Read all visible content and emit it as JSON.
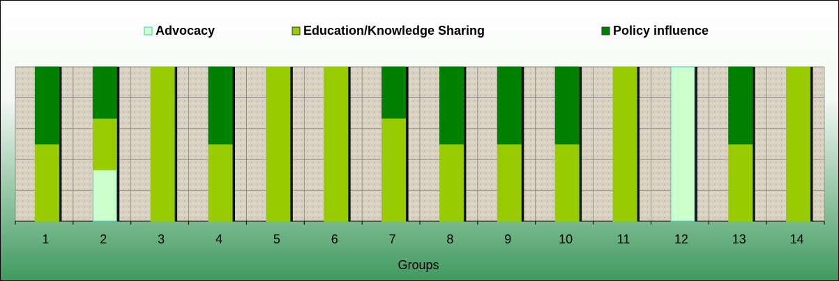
{
  "chart_data": {
    "type": "stacked_bar_100",
    "x_label": "Groups",
    "categories": [
      "1",
      "2",
      "3",
      "4",
      "5",
      "6",
      "7",
      "8",
      "9",
      "10",
      "11",
      "12",
      "13",
      "14"
    ],
    "series": [
      {
        "name": "Advocacy",
        "color": "#ccffcc",
        "values": [
          0,
          33.3,
          0,
          0,
          0,
          0,
          0,
          0,
          0,
          0,
          0,
          100,
          0,
          0
        ]
      },
      {
        "name": "Education/Knowledge Sharing",
        "color": "#99cc00",
        "values": [
          50,
          33.3,
          100,
          50,
          100,
          100,
          66.7,
          50,
          50,
          50,
          100,
          0,
          50,
          100
        ]
      },
      {
        "name": "Policy influence",
        "color": "#008000",
        "values": [
          50,
          33.4,
          0,
          50,
          0,
          0,
          33.3,
          50,
          50,
          50,
          0,
          0,
          50,
          0
        ]
      }
    ],
    "ylim": [
      0,
      100
    ],
    "yticks": [
      0,
      20,
      40,
      60,
      80,
      100
    ],
    "grid": true,
    "legend": "top"
  }
}
